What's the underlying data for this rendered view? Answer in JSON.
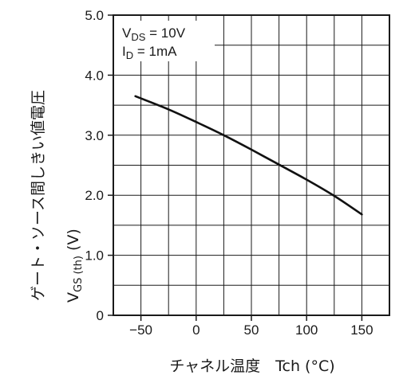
{
  "chart_data": {
    "type": "line",
    "title": "",
    "xlabel": "チャネル温度　Tch (°C)",
    "ylabel_jp": "ゲート・ソース間しきい値電圧",
    "ylabel_sym": {
      "main": "V",
      "sub": "GS (th)",
      "unit": "(V)"
    },
    "xlim": [
      -75,
      175
    ],
    "ylim": [
      0,
      5.0
    ],
    "x_ticks": [
      -50,
      0,
      50,
      100,
      150
    ],
    "x_tick_labels": [
      "−50",
      "0",
      "50",
      "100",
      "150"
    ],
    "y_ticks": [
      0,
      1.0,
      2.0,
      3.0,
      4.0,
      5.0
    ],
    "y_tick_labels": [
      "0",
      "1.0",
      "2.0",
      "3.0",
      "4.0",
      "5.0"
    ],
    "grid": true,
    "conditions": [
      {
        "main": "V",
        "sub": "DS",
        "rest": " = 10V"
      },
      {
        "main": "I",
        "sub": "D",
        "rest": " = 1mA"
      }
    ],
    "series": [
      {
        "x": [
          -55,
          -25,
          0,
          25,
          50,
          75,
          100,
          125,
          150
        ],
        "y": [
          3.65,
          3.43,
          3.22,
          3.0,
          2.76,
          2.51,
          2.26,
          1.99,
          1.68
        ]
      }
    ]
  }
}
